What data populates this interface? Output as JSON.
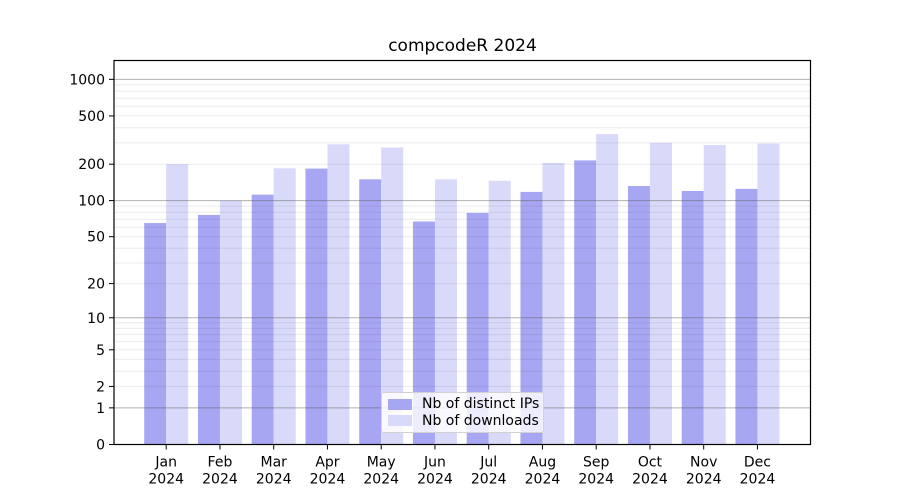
{
  "title": "compcodeR 2024",
  "chart_data": {
    "type": "bar",
    "title": "compcodeR 2024",
    "categories": [
      "Jan",
      "Feb",
      "Mar",
      "Apr",
      "May",
      "Jun",
      "Jul",
      "Aug",
      "Sep",
      "Oct",
      "Nov",
      "Dec"
    ],
    "category_year": "2024",
    "yscale": "log1p",
    "yticks": [
      0,
      1,
      2,
      5,
      10,
      20,
      50,
      100,
      200,
      500,
      1000
    ],
    "ylim": [
      0,
      1450
    ],
    "grid": true,
    "legend_position": "lower center",
    "series": [
      {
        "name": "Nb of distinct IPs",
        "color": "#a6a6f2",
        "values": [
          65,
          76,
          112,
          184,
          150,
          67,
          79,
          118,
          215,
          132,
          120,
          125
        ]
      },
      {
        "name": "Nb of downloads",
        "color": "#d9d9fa",
        "values": [
          200,
          100,
          185,
          292,
          275,
          150,
          146,
          205,
          354,
          300,
          288,
          296
        ]
      }
    ],
    "palette": {
      "grid_major": "#b0b0b0",
      "grid_minor": "#e6e6e6",
      "spine": "#000000",
      "text": "#000000"
    }
  }
}
